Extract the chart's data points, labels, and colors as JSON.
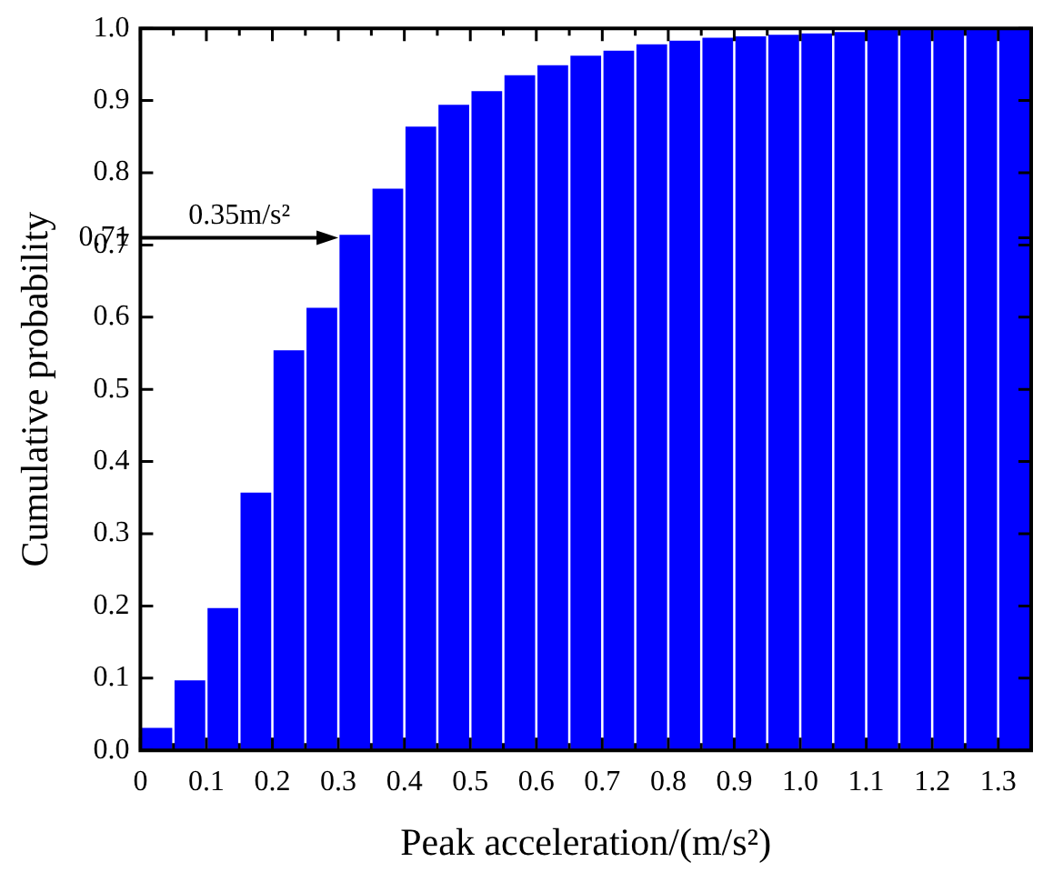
{
  "chart_data": {
    "type": "histogram",
    "xlabel": "Peak acceleration/(m/s²)",
    "ylabel": "Cumulative probability",
    "bins": [
      0,
      0.05,
      0.1,
      0.15,
      0.2,
      0.25,
      0.3,
      0.35,
      0.4,
      0.45,
      0.5,
      0.55,
      0.6,
      0.65,
      0.7,
      0.75,
      0.8,
      0.85,
      0.9,
      0.95,
      1.0,
      1.05,
      1.1,
      1.15,
      1.2,
      1.25,
      1.3,
      1.35
    ],
    "values": [
      0.031,
      0.097,
      0.197,
      0.357,
      0.554,
      0.613,
      0.714,
      0.778,
      0.864,
      0.894,
      0.913,
      0.935,
      0.949,
      0.962,
      0.969,
      0.978,
      0.983,
      0.987,
      0.989,
      0.991,
      0.993,
      0.995,
      0.998,
      0.999,
      1.0,
      1.0,
      1.0
    ],
    "color": "#0000ff",
    "xlim": [
      0,
      1.35
    ],
    "xticks": [
      0,
      0.1,
      0.2,
      0.3,
      0.4,
      0.5,
      0.6,
      0.7,
      0.8,
      0.9,
      {
        "value": 1.0,
        "label": "1.0"
      },
      1.1,
      1.2,
      1.3
    ],
    "ylim": [
      0,
      1.0
    ],
    "yticks": [
      {
        "value": 0,
        "label": "0.0"
      },
      0.1,
      0.2,
      0.3,
      0.4,
      0.5,
      0.6,
      0.7,
      {
        "value": 0.71,
        "label": "0.71"
      },
      0.8,
      0.9,
      {
        "value": 1.0,
        "label": "1.0"
      }
    ],
    "annotations": [
      {
        "text": "0.35m/s²",
        "x": 0.3,
        "y": 0.71
      }
    ],
    "grid": false,
    "legend": false
  }
}
